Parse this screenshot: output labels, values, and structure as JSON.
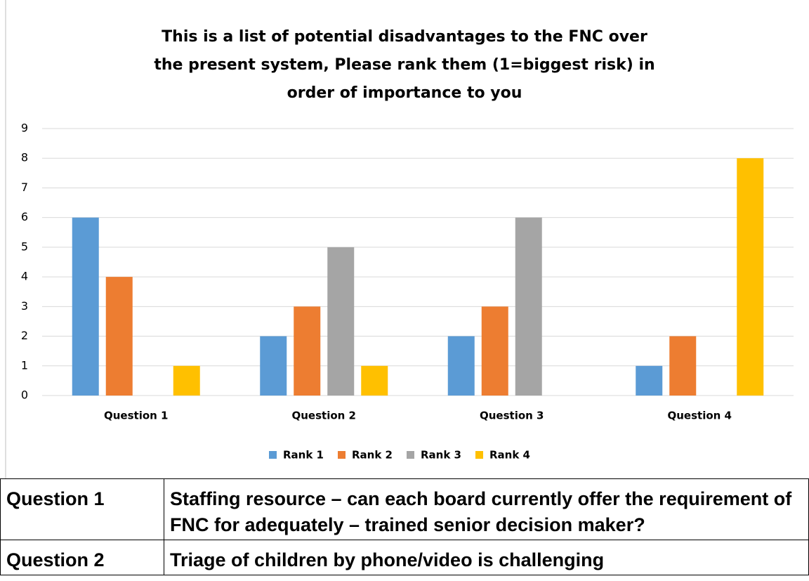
{
  "chart_data": {
    "type": "bar",
    "title": "This is a list of potential disadvantages to the FNC over the present system, Please rank them (1=biggest risk) in order of importance to you",
    "categories": [
      "Question 1",
      "Question 2",
      "Question 3",
      "Question 4"
    ],
    "series": [
      {
        "name": "Rank 1",
        "color": "#5b9bd5",
        "values": [
          6,
          2,
          2,
          1
        ]
      },
      {
        "name": "Rank 2",
        "color": "#ed7d31",
        "values": [
          4,
          3,
          3,
          2
        ]
      },
      {
        "name": "Rank 3",
        "color": "#a5a5a5",
        "values": [
          0,
          5,
          6,
          0
        ]
      },
      {
        "name": "Rank 4",
        "color": "#ffc000",
        "values": [
          1,
          1,
          0,
          8
        ]
      }
    ],
    "ylim": [
      0,
      9
    ],
    "yticks": [
      0,
      1,
      2,
      3,
      4,
      5,
      6,
      7,
      8,
      9
    ],
    "grid": true,
    "legend": "bottom"
  },
  "table": {
    "rows": [
      [
        "Question 1",
        "Staffing resource – can each board currently offer the requirement of FNC for adequately – trained senior decision maker?"
      ],
      [
        "Question 2",
        "Triage of children by phone/video is challenging"
      ]
    ]
  }
}
